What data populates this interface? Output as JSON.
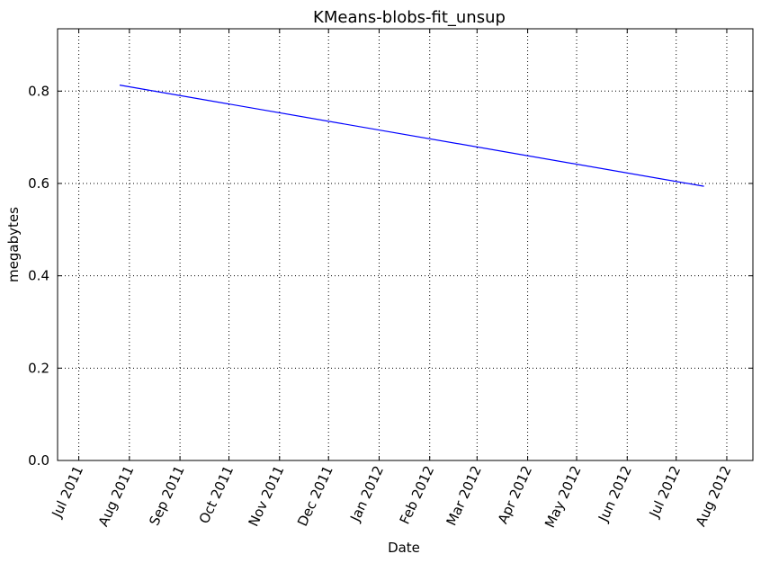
{
  "chart_data": {
    "type": "line",
    "title": "KMeans-blobs-fit_unsup",
    "xlabel": "Date",
    "ylabel": "megabytes",
    "x_tick_labels": [
      "Jul 2011",
      "Aug 2011",
      "Sep 2011",
      "Oct 2011",
      "Nov 2011",
      "Dec 2011",
      "Jan 2012",
      "Feb 2012",
      "Mar 2012",
      "Apr 2012",
      "May 2012",
      "Jun 2012",
      "Jul 2012",
      "Aug 2012"
    ],
    "y_tick_labels": [
      "0.0",
      "0.2",
      "0.4",
      "0.6",
      "0.8"
    ],
    "xlim": [
      "2011-06-18",
      "2012-08-17"
    ],
    "ylim": [
      0.0,
      0.935
    ],
    "grid": true,
    "series": [
      {
        "color": "#0000ff",
        "x": [
          "2011-07-26",
          "2012-07-18"
        ],
        "y": [
          0.813,
          0.594
        ]
      }
    ]
  }
}
